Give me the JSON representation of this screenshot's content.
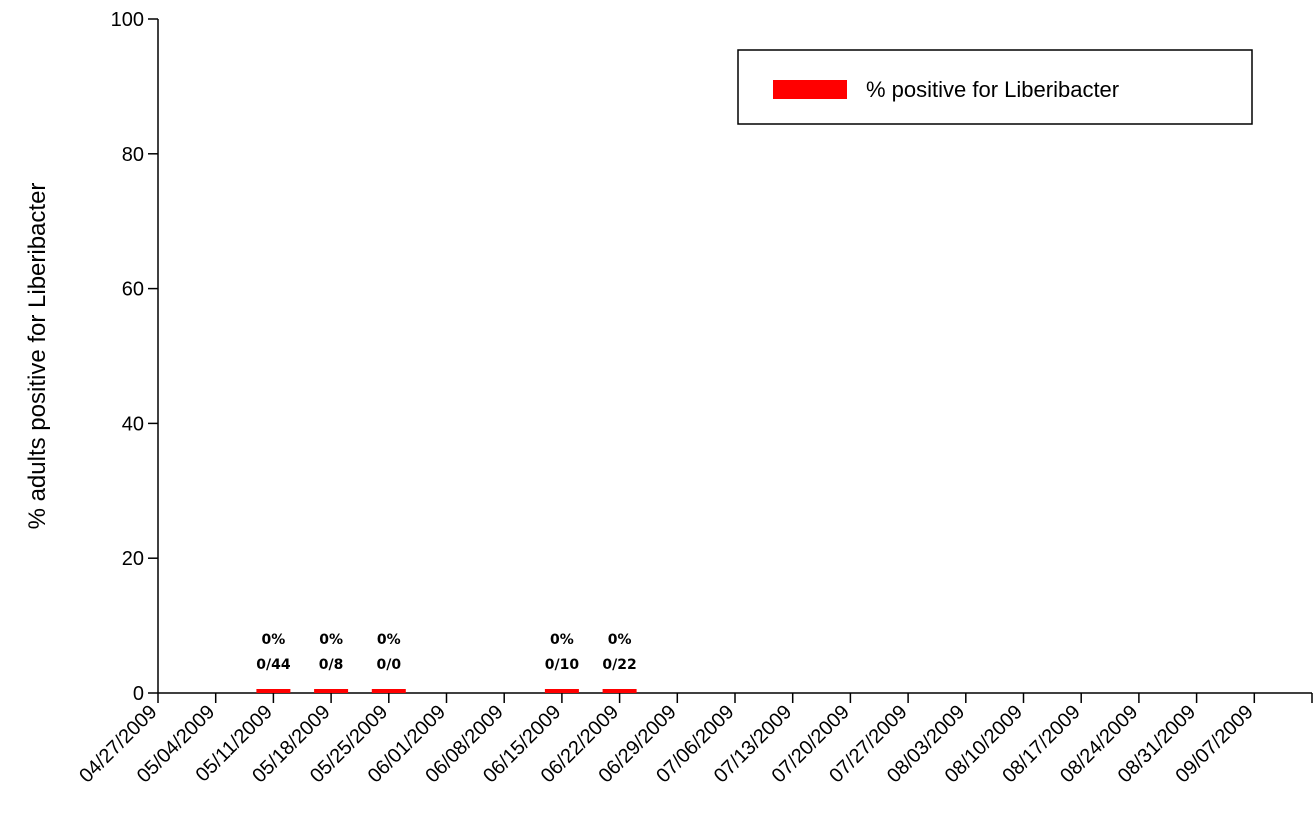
{
  "chart_data": {
    "type": "bar",
    "ylabel": "% adults positive for Liberibacter",
    "xlabel": "",
    "ylim": [
      0,
      100
    ],
    "yticks": [
      0,
      20,
      40,
      60,
      80,
      100
    ],
    "categories": [
      "04/27/2009",
      "05/04/2009",
      "05/11/2009",
      "05/18/2009",
      "05/25/2009",
      "06/01/2009",
      "06/08/2009",
      "06/15/2009",
      "06/22/2009",
      "06/29/2009",
      "07/06/2009",
      "07/13/2009",
      "07/20/2009",
      "07/27/2009",
      "08/03/2009",
      "08/10/2009",
      "08/17/2009",
      "08/24/2009",
      "08/31/2009",
      "09/07/2009"
    ],
    "series": [
      {
        "name": "% positive for Liberibacter",
        "color": "#ff0000",
        "points": [
          {
            "x": "05/04/2009",
            "value": 0,
            "pct_label": "0%",
            "count_label": "0/44"
          },
          {
            "x": "05/11/2009",
            "value": 0,
            "pct_label": "0%",
            "count_label": "0/8"
          },
          {
            "x": "05/18/2009",
            "value": 0,
            "pct_label": "0%",
            "count_label": "0/0"
          },
          {
            "x": "06/08/2009",
            "value": 0,
            "pct_label": "0%",
            "count_label": "0/10"
          },
          {
            "x": "06/15/2009",
            "value": 0,
            "pct_label": "0%",
            "count_label": "0/22"
          }
        ]
      }
    ],
    "legend": {
      "position": "top-right",
      "label": "% positive for Liberibacter"
    },
    "grid": false
  }
}
